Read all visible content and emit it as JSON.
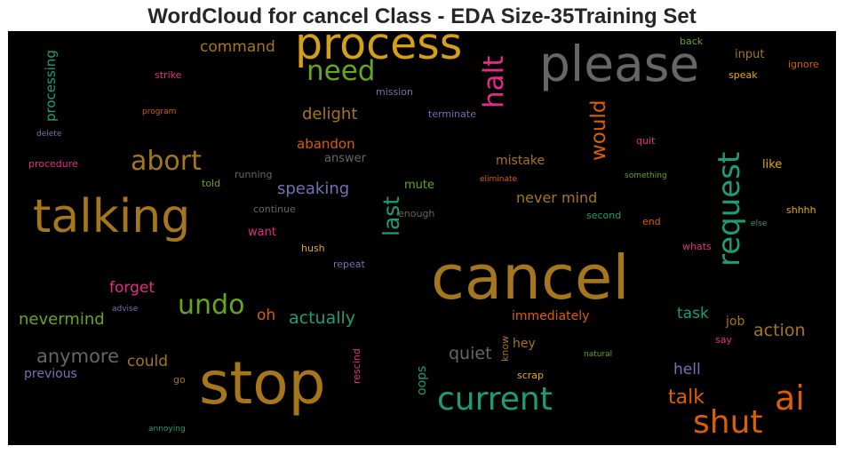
{
  "title": "WordCloud for cancel Class - EDA Size-35Training Set",
  "words": [
    {
      "text": "process",
      "color": "#d4a017"
    },
    {
      "text": "please",
      "color": "#666666"
    },
    {
      "text": "need",
      "color": "#66a61e"
    },
    {
      "text": "halt",
      "color": "#e7298a"
    },
    {
      "text": "command",
      "color": "#a6761d"
    },
    {
      "text": "strike",
      "color": "#e7298a"
    },
    {
      "text": "mission",
      "color": "#7570b3"
    },
    {
      "text": "processing",
      "color": "#1b9e77"
    },
    {
      "text": "program",
      "color": "#d95f02"
    },
    {
      "text": "terminate",
      "color": "#7570b3"
    },
    {
      "text": "delight",
      "color": "#a6761d"
    },
    {
      "text": "delete",
      "color": "#7570b3"
    },
    {
      "text": "would",
      "color": "#d95f02"
    },
    {
      "text": "back",
      "color": "#66a61e"
    },
    {
      "text": "input",
      "color": "#a6761d"
    },
    {
      "text": "ignore",
      "color": "#d95f02"
    },
    {
      "text": "speak",
      "color": "#e6ab02"
    },
    {
      "text": "request",
      "color": "#1b9e77"
    },
    {
      "text": "quit",
      "color": "#e7298a"
    },
    {
      "text": "abandon",
      "color": "#d95f02"
    },
    {
      "text": "answer",
      "color": "#666666"
    },
    {
      "text": "procedure",
      "color": "#e7298a"
    },
    {
      "text": "abort",
      "color": "#a6761d"
    },
    {
      "text": "mistake",
      "color": "#a6761d"
    },
    {
      "text": "like",
      "color": "#e6ab02"
    },
    {
      "text": "running",
      "color": "#666666"
    },
    {
      "text": "eliminate",
      "color": "#d95f02"
    },
    {
      "text": "something",
      "color": "#66a61e"
    },
    {
      "text": "told",
      "color": "#66a61e"
    },
    {
      "text": "speaking",
      "color": "#7570b3"
    },
    {
      "text": "mute",
      "color": "#66a61e"
    },
    {
      "text": "talking",
      "color": "#a6761d"
    },
    {
      "text": "last",
      "color": "#1b9e77"
    },
    {
      "text": "never mind",
      "color": "#a6761d"
    },
    {
      "text": "continue",
      "color": "#666666"
    },
    {
      "text": "enough",
      "color": "#666666"
    },
    {
      "text": "second",
      "color": "#1b9e77"
    },
    {
      "text": "shhhh",
      "color": "#e6ab02"
    },
    {
      "text": "end",
      "color": "#d95f02"
    },
    {
      "text": "else",
      "color": "#1b9e77"
    },
    {
      "text": "want",
      "color": "#e7298a"
    },
    {
      "text": "whats",
      "color": "#e7298a"
    },
    {
      "text": "hush",
      "color": "#e6ab02"
    },
    {
      "text": "repeat",
      "color": "#7570b3"
    },
    {
      "text": "cancel",
      "color": "#a6761d"
    },
    {
      "text": "forget",
      "color": "#e7298a"
    },
    {
      "text": "undo",
      "color": "#66a61e"
    },
    {
      "text": "advise",
      "color": "#7570b3"
    },
    {
      "text": "nevermind",
      "color": "#66a61e"
    },
    {
      "text": "oh",
      "color": "#d95f02"
    },
    {
      "text": "actually",
      "color": "#1b9e77"
    },
    {
      "text": "immediately",
      "color": "#d95f02"
    },
    {
      "text": "task",
      "color": "#1b9e77"
    },
    {
      "text": "job",
      "color": "#a6761d"
    },
    {
      "text": "action",
      "color": "#a6761d"
    },
    {
      "text": "say",
      "color": "#e7298a"
    },
    {
      "text": "anymore",
      "color": "#666666"
    },
    {
      "text": "could",
      "color": "#a6761d"
    },
    {
      "text": "know",
      "color": "#a6761d"
    },
    {
      "text": "hey",
      "color": "#a6761d"
    },
    {
      "text": "quiet",
      "color": "#666666"
    },
    {
      "text": "natural",
      "color": "#66a61e"
    },
    {
      "text": "previous",
      "color": "#7570b3"
    },
    {
      "text": "rescind",
      "color": "#e7298a"
    },
    {
      "text": "oops",
      "color": "#1b9e77"
    },
    {
      "text": "scrap",
      "color": "#e6ab02"
    },
    {
      "text": "hell",
      "color": "#7570b3"
    },
    {
      "text": "go",
      "color": "#a6761d"
    },
    {
      "text": "stop",
      "color": "#a6761d"
    },
    {
      "text": "current",
      "color": "#1b9e77"
    },
    {
      "text": "talk",
      "color": "#d95f02"
    },
    {
      "text": "ai",
      "color": "#d95f02"
    },
    {
      "text": "shut",
      "color": "#d95f02"
    },
    {
      "text": "annoying",
      "color": "#1b9e77"
    }
  ]
}
